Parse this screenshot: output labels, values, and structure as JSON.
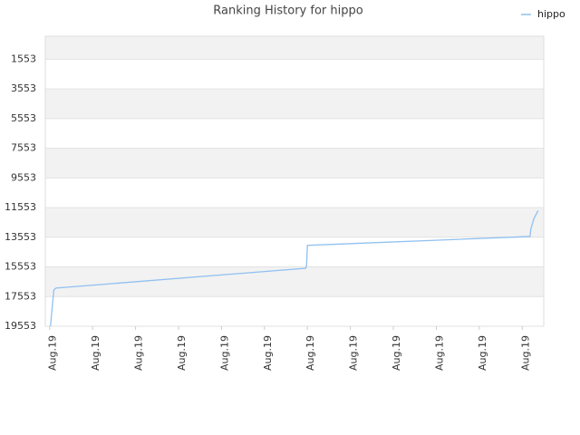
{
  "chart_data": {
    "type": "line",
    "title": "Ranking History for hippo",
    "x": [
      0.02,
      0.05,
      0.1,
      0.15,
      5.96,
      5.98,
      6.0,
      11.18,
      11.2,
      11.27,
      11.37
    ],
    "series": [
      {
        "name": "hippo",
        "color": "#90c0f0",
        "values": [
          19553,
          18600,
          17100,
          16980,
          15640,
          15450,
          14100,
          13500,
          13000,
          12300,
          11750
        ]
      }
    ],
    "xlim": [
      -0.1,
      11.5
    ],
    "xticks": [
      {
        "value": 0,
        "label": "Aug.19"
      },
      {
        "value": 1,
        "label": "Aug.19"
      },
      {
        "value": 2,
        "label": "Aug.19"
      },
      {
        "value": 3,
        "label": "Aug.19"
      },
      {
        "value": 4,
        "label": "Aug.19"
      },
      {
        "value": 5,
        "label": "Aug.19"
      },
      {
        "value": 6,
        "label": "Aug.19"
      },
      {
        "value": 7,
        "label": "Aug.19"
      },
      {
        "value": 8,
        "label": "Aug.19"
      },
      {
        "value": 9,
        "label": "Aug.19"
      },
      {
        "value": 10,
        "label": "Aug.19"
      },
      {
        "value": 11,
        "label": "Aug.19"
      }
    ],
    "ylim": [
      19553,
      0
    ],
    "yticks": [
      1553,
      3553,
      5553,
      7553,
      9553,
      11553,
      13553,
      15553,
      17553,
      19553
    ],
    "grid": true,
    "legend": "top-right"
  }
}
